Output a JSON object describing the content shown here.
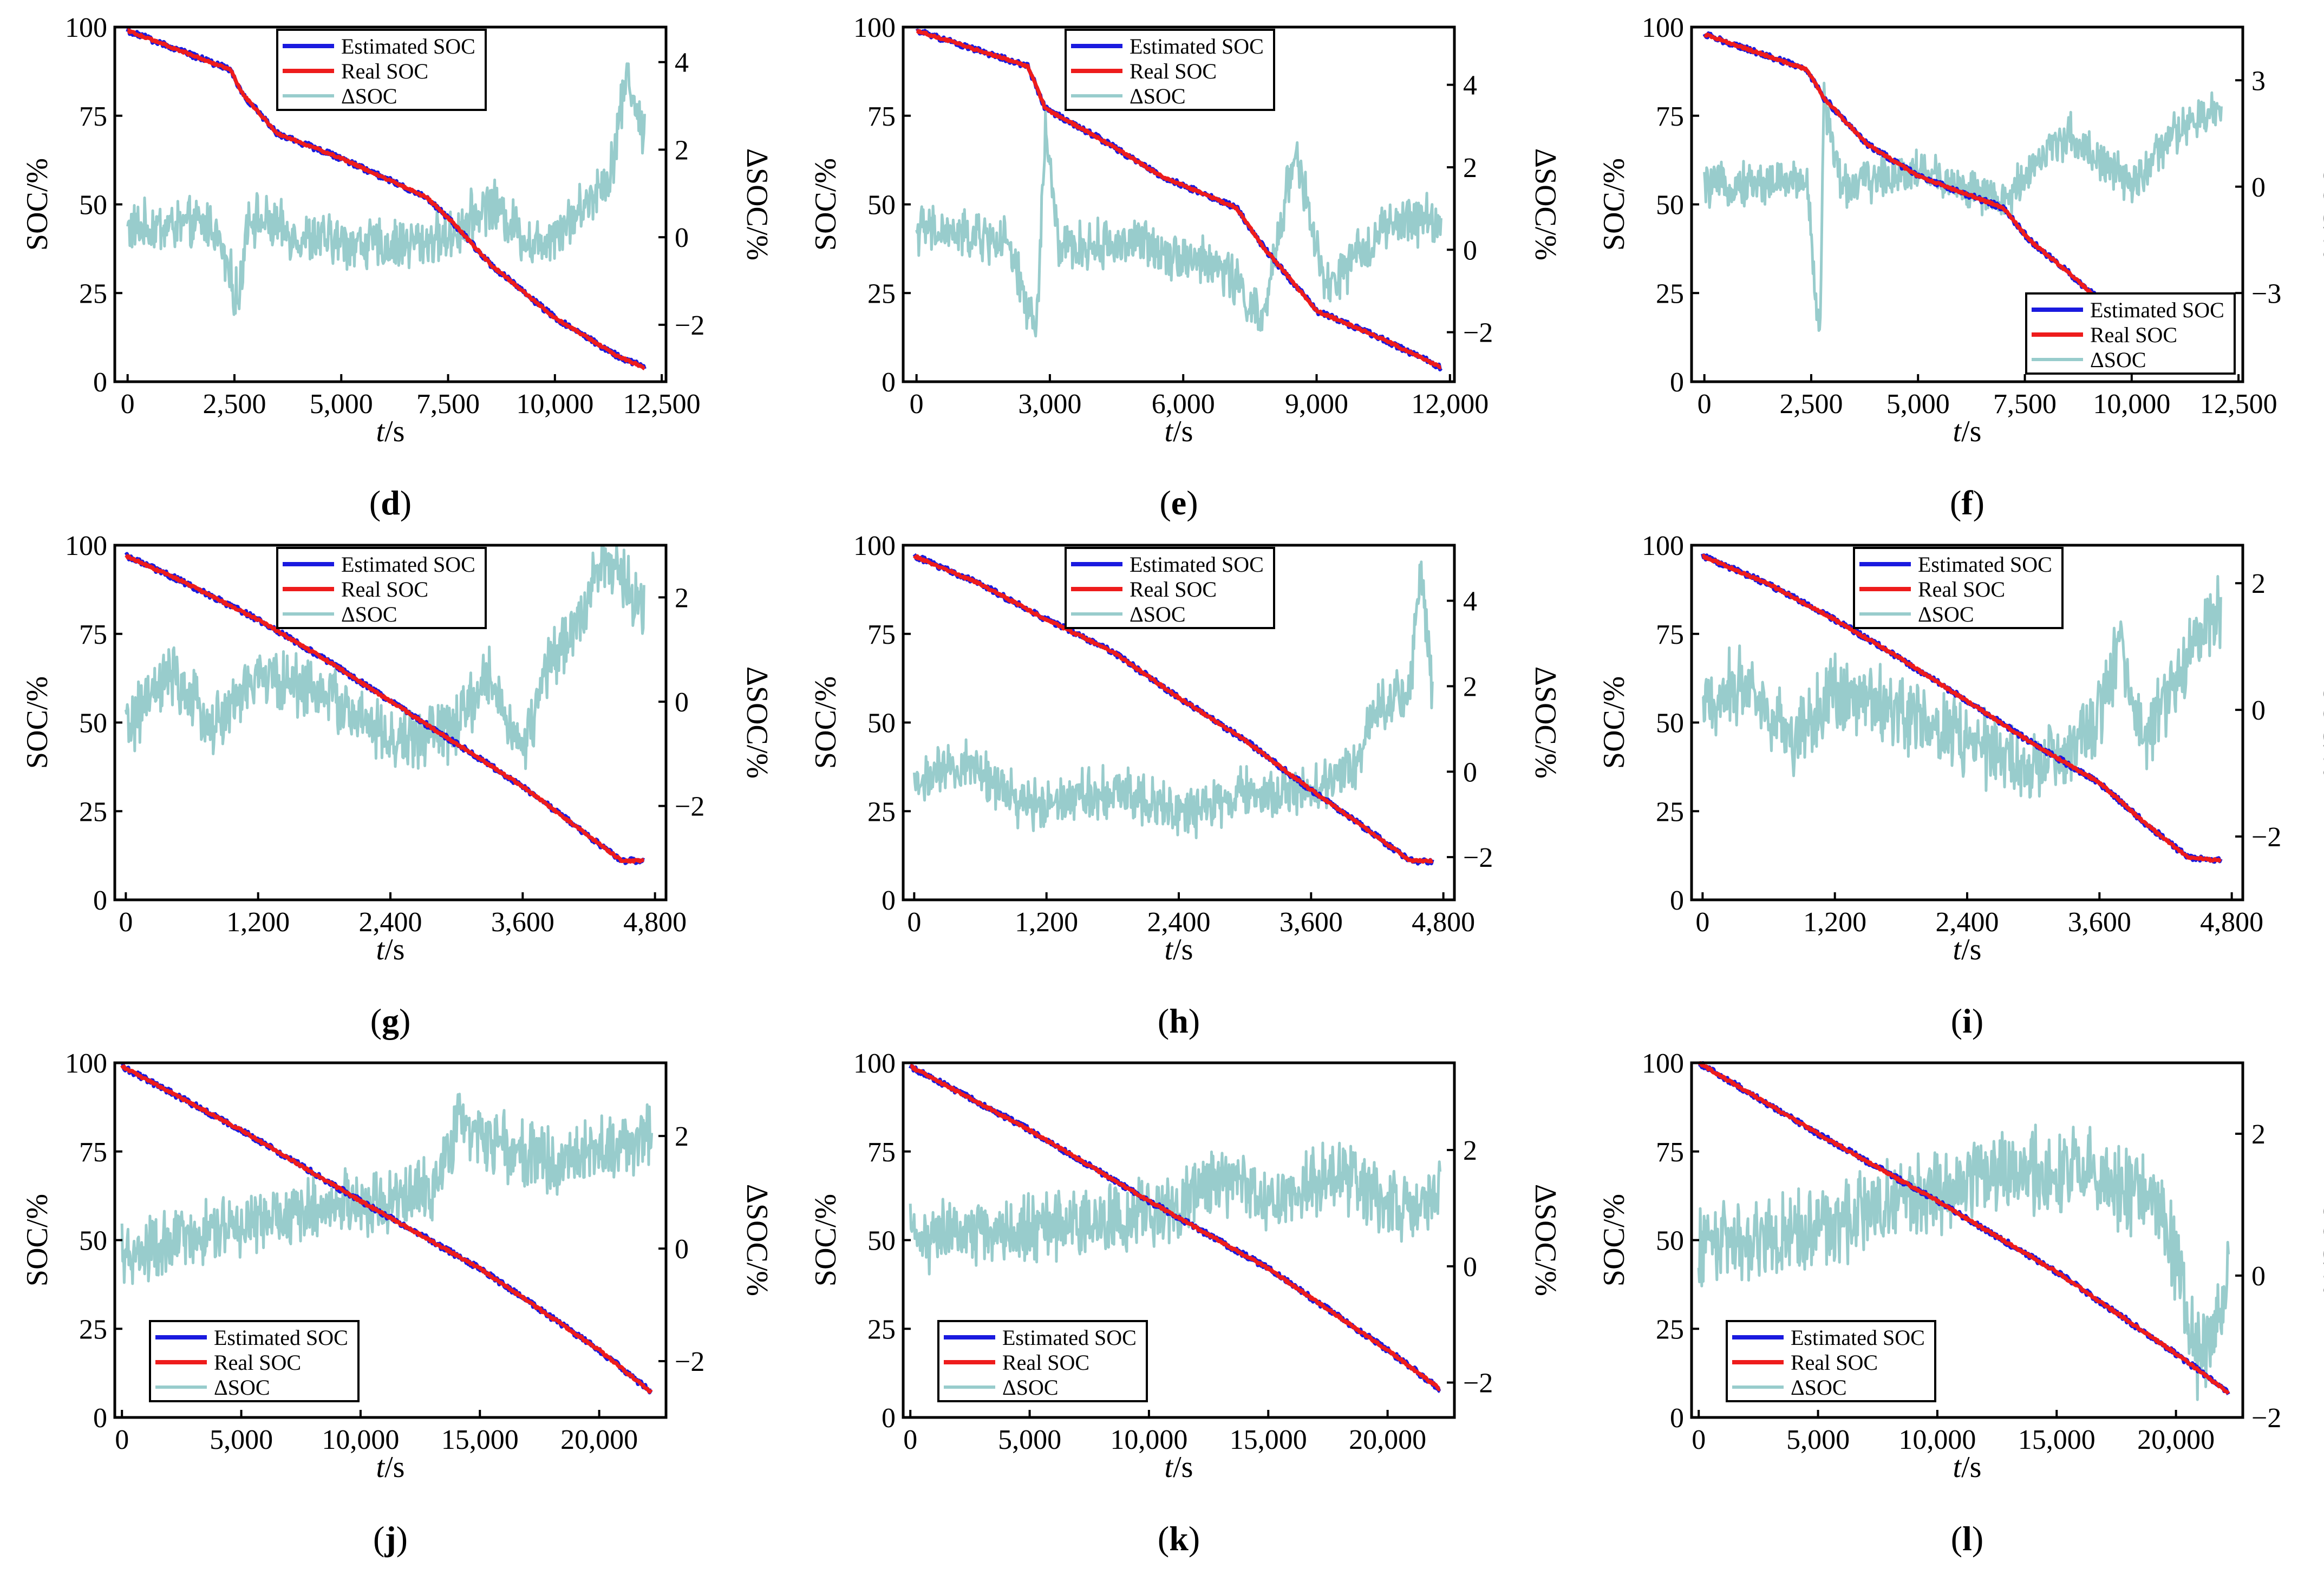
{
  "colors": {
    "estimated": "#1a1adf",
    "real": "#ee1c1c",
    "delta": "#98cccc",
    "axis": "#000000"
  },
  "chart_data": [
    {
      "panel": "d",
      "type": "line",
      "xticks": [
        0,
        2500,
        5000,
        7500,
        10000,
        12500
      ],
      "xlim": [
        -300,
        12600
      ],
      "ylim": [
        0,
        100
      ],
      "yticks": [
        0,
        25,
        50,
        75,
        100
      ],
      "y2lim": [
        -3.3,
        4.8
      ],
      "y2ticks": [
        -2,
        0,
        2,
        4
      ],
      "xlabel": "t/s",
      "ylabel": "SOC/%",
      "y2label": "ΔSOC/%",
      "legend": "top-center",
      "real_soc": [
        [
          0,
          99
        ],
        [
          2400,
          88
        ],
        [
          2700,
          81
        ],
        [
          3500,
          70
        ],
        [
          5000,
          63
        ],
        [
          7000,
          52
        ],
        [
          7600,
          45
        ],
        [
          8500,
          33
        ],
        [
          10000,
          18
        ],
        [
          11500,
          7
        ],
        [
          12100,
          4
        ]
      ],
      "delta_soc": [
        [
          0,
          0.2
        ],
        [
          2000,
          0.3
        ],
        [
          2600,
          -1.5
        ],
        [
          2800,
          0.5
        ],
        [
          4000,
          0
        ],
        [
          6000,
          -0.2
        ],
        [
          7500,
          0
        ],
        [
          8500,
          0.8
        ],
        [
          9500,
          -0.2
        ],
        [
          10500,
          0.5
        ],
        [
          11300,
          1.5
        ],
        [
          11700,
          3.8
        ],
        [
          12000,
          2.5
        ]
      ],
      "series": [
        {
          "name": "Estimated SOC"
        },
        {
          "name": "Real SOC"
        },
        {
          "name": "ΔSOC"
        }
      ]
    },
    {
      "panel": "e",
      "type": "line",
      "xticks": [
        0,
        3000,
        6000,
        9000,
        12000
      ],
      "xlim": [
        -300,
        12100
      ],
      "ylim": [
        0,
        100
      ],
      "yticks": [
        0,
        25,
        50,
        75,
        100
      ],
      "y2lim": [
        -3.2,
        5.4
      ],
      "y2ticks": [
        -2,
        0,
        2,
        4
      ],
      "xlabel": "t/s",
      "ylabel": "SOC/%",
      "y2label": "ΔSOC/%",
      "legend": "top-center",
      "real_soc": [
        [
          0,
          99
        ],
        [
          2500,
          89
        ],
        [
          2900,
          77
        ],
        [
          4200,
          68
        ],
        [
          5500,
          58
        ],
        [
          7200,
          49
        ],
        [
          7800,
          38
        ],
        [
          9000,
          20
        ],
        [
          10500,
          12
        ],
        [
          11800,
          4
        ]
      ],
      "delta_soc": [
        [
          0,
          0.5
        ],
        [
          2000,
          0.2
        ],
        [
          2700,
          -2.0
        ],
        [
          2900,
          3.0
        ],
        [
          3200,
          0
        ],
        [
          5000,
          0.2
        ],
        [
          7000,
          -0.5
        ],
        [
          7800,
          -1.8
        ],
        [
          8500,
          2.5
        ],
        [
          9200,
          -1.0
        ],
        [
          10500,
          0.5
        ],
        [
          11500,
          0.8
        ],
        [
          11900,
          0.5
        ]
      ],
      "series": [
        {
          "name": "Estimated SOC"
        },
        {
          "name": "Real SOC"
        },
        {
          "name": "ΔSOC"
        }
      ]
    },
    {
      "panel": "f",
      "type": "line",
      "xticks": [
        0,
        2500,
        5000,
        7500,
        10000,
        12500
      ],
      "xlim": [
        -300,
        12600
      ],
      "ylim": [
        0,
        100
      ],
      "yticks": [
        0,
        25,
        50,
        75,
        100
      ],
      "y2lim": [
        -5.5,
        4.5
      ],
      "y2ticks": [
        -3,
        0,
        3
      ],
      "xlabel": "t/s",
      "ylabel": "SOC/%",
      "y2label": "ΔSOC/%",
      "legend": "bottom-right",
      "real_soc": [
        [
          0,
          98
        ],
        [
          2400,
          88
        ],
        [
          2800,
          80
        ],
        [
          3800,
          67
        ],
        [
          5000,
          58
        ],
        [
          7000,
          49
        ],
        [
          7600,
          40
        ],
        [
          8500,
          31
        ],
        [
          10000,
          15
        ],
        [
          11500,
          6
        ],
        [
          12100,
          4
        ]
      ],
      "delta_soc": [
        [
          0,
          0
        ],
        [
          2400,
          0.2
        ],
        [
          2700,
          -4.5
        ],
        [
          2800,
          2.5
        ],
        [
          3200,
          0
        ],
        [
          5000,
          0.5
        ],
        [
          7000,
          -0.5
        ],
        [
          7600,
          0.5
        ],
        [
          8500,
          1.5
        ],
        [
          9200,
          0.8
        ],
        [
          10000,
          0
        ],
        [
          11000,
          1.5
        ],
        [
          12100,
          2.2
        ]
      ],
      "series": [
        {
          "name": "Estimated SOC"
        },
        {
          "name": "Real SOC"
        },
        {
          "name": "ΔSOC"
        }
      ]
    },
    {
      "panel": "g",
      "type": "line",
      "xticks": [
        0,
        1200,
        2400,
        3600,
        4800
      ],
      "xlim": [
        -100,
        4900
      ],
      "ylim": [
        0,
        100
      ],
      "yticks": [
        0,
        25,
        50,
        75,
        100
      ],
      "y2lim": [
        -3.8,
        3.0
      ],
      "y2ticks": [
        -2,
        0,
        2
      ],
      "xlabel": "t/s",
      "ylabel": "SOC/%",
      "y2label": "ΔSOC/%",
      "legend": "top-center",
      "real_soc": [
        [
          0,
          97
        ],
        [
          500,
          90
        ],
        [
          1200,
          79
        ],
        [
          1800,
          68
        ],
        [
          2400,
          56
        ],
        [
          3000,
          44
        ],
        [
          3600,
          32
        ],
        [
          4200,
          18
        ],
        [
          4500,
          11
        ],
        [
          4700,
          11
        ]
      ],
      "delta_soc": [
        [
          0,
          -0.5
        ],
        [
          400,
          0.5
        ],
        [
          800,
          -0.5
        ],
        [
          1200,
          0.5
        ],
        [
          1800,
          0.2
        ],
        [
          2400,
          -0.8
        ],
        [
          3000,
          -0.5
        ],
        [
          3300,
          0.5
        ],
        [
          3600,
          -1.0
        ],
        [
          3800,
          0.5
        ],
        [
          4100,
          1.5
        ],
        [
          4300,
          2.8
        ],
        [
          4700,
          1.8
        ]
      ],
      "series": [
        {
          "name": "Estimated SOC"
        },
        {
          "name": "Real SOC"
        },
        {
          "name": "ΔSOC"
        }
      ]
    },
    {
      "panel": "h",
      "type": "line",
      "xticks": [
        0,
        1200,
        2400,
        3600,
        4800
      ],
      "xlim": [
        -100,
        4900
      ],
      "ylim": [
        0,
        100
      ],
      "yticks": [
        0,
        25,
        50,
        75,
        100
      ],
      "y2lim": [
        -3.0,
        5.3
      ],
      "y2ticks": [
        -2,
        0,
        2,
        4
      ],
      "xlabel": "t/s",
      "ylabel": "SOC/%",
      "y2label": "ΔSOC/%",
      "legend": "top-center",
      "real_soc": [
        [
          0,
          97
        ],
        [
          600,
          89
        ],
        [
          1200,
          79
        ],
        [
          1800,
          70
        ],
        [
          2400,
          57
        ],
        [
          3000,
          45
        ],
        [
          3600,
          31
        ],
        [
          4100,
          20
        ],
        [
          4500,
          11
        ],
        [
          4700,
          11
        ]
      ],
      "delta_soc": [
        [
          0,
          -0.3
        ],
        [
          500,
          0.2
        ],
        [
          1000,
          -0.8
        ],
        [
          1500,
          -0.5
        ],
        [
          2000,
          -0.5
        ],
        [
          2500,
          -1.0
        ],
        [
          3000,
          -0.5
        ],
        [
          3600,
          -0.5
        ],
        [
          4000,
          0.2
        ],
        [
          4200,
          1.5
        ],
        [
          4500,
          2.0
        ],
        [
          4600,
          4.8
        ],
        [
          4700,
          1.8
        ]
      ],
      "series": [
        {
          "name": "Estimated SOC"
        },
        {
          "name": "Real SOC"
        },
        {
          "name": "ΔSOC"
        }
      ]
    },
    {
      "panel": "i",
      "type": "line",
      "xticks": [
        0,
        1200,
        2400,
        3600,
        4800
      ],
      "xlim": [
        -100,
        4900
      ],
      "ylim": [
        0,
        100
      ],
      "yticks": [
        0,
        25,
        50,
        75,
        100
      ],
      "y2lim": [
        -3.0,
        2.6
      ],
      "y2ticks": [
        -2,
        0,
        2
      ],
      "xlabel": "t/s",
      "ylabel": "SOC/%",
      "y2label": "ΔSOC/%",
      "legend": "top-center",
      "real_soc": [
        [
          0,
          97
        ],
        [
          600,
          89
        ],
        [
          1200,
          79
        ],
        [
          1800,
          68
        ],
        [
          2400,
          56
        ],
        [
          3000,
          44
        ],
        [
          3600,
          33
        ],
        [
          4000,
          22
        ],
        [
          4400,
          12
        ],
        [
          4700,
          11
        ]
      ],
      "delta_soc": [
        [
          0,
          0
        ],
        [
          400,
          0.5
        ],
        [
          800,
          -0.5
        ],
        [
          1200,
          0.3
        ],
        [
          1800,
          0
        ],
        [
          2400,
          -0.5
        ],
        [
          3000,
          -1.0
        ],
        [
          3500,
          -0.5
        ],
        [
          3800,
          1.0
        ],
        [
          4000,
          -0.5
        ],
        [
          4300,
          0.5
        ],
        [
          4500,
          1.2
        ],
        [
          4700,
          1.6
        ]
      ],
      "series": [
        {
          "name": "Estimated SOC"
        },
        {
          "name": "Real SOC"
        },
        {
          "name": "ΔSOC"
        }
      ]
    },
    {
      "panel": "j",
      "type": "line",
      "xticks": [
        0,
        5000,
        10000,
        15000,
        20000
      ],
      "xlim": [
        -300,
        22800
      ],
      "ylim": [
        0,
        100
      ],
      "yticks": [
        0,
        25,
        50,
        75,
        100
      ],
      "y2lim": [
        -3.0,
        3.3
      ],
      "y2ticks": [
        -2,
        0,
        2
      ],
      "xlabel": "t/s",
      "ylabel": "SOC/%",
      "y2label": "ΔSOC/%",
      "legend": "bottom-left",
      "real_soc": [
        [
          0,
          99
        ],
        [
          5000,
          81
        ],
        [
          10000,
          61
        ],
        [
          15000,
          42
        ],
        [
          20000,
          19
        ],
        [
          22200,
          7
        ]
      ],
      "delta_soc": [
        [
          0,
          -0.2
        ],
        [
          3000,
          0.2
        ],
        [
          7000,
          0.6
        ],
        [
          10000,
          0.8
        ],
        [
          13000,
          1.0
        ],
        [
          14000,
          2.2
        ],
        [
          16000,
          1.8
        ],
        [
          18000,
          1.5
        ],
        [
          20000,
          1.8
        ],
        [
          22200,
          2.0
        ]
      ],
      "series": [
        {
          "name": "Estimated SOC"
        },
        {
          "name": "Real SOC"
        },
        {
          "name": "ΔSOC"
        }
      ]
    },
    {
      "panel": "k",
      "type": "line",
      "xticks": [
        0,
        5000,
        10000,
        15000,
        20000
      ],
      "xlim": [
        -300,
        22800
      ],
      "ylim": [
        0,
        100
      ],
      "yticks": [
        0,
        25,
        50,
        75,
        100
      ],
      "y2lim": [
        -2.6,
        3.5
      ],
      "y2ticks": [
        -2,
        0,
        2
      ],
      "xlabel": "t/s",
      "ylabel": "SOC/%",
      "y2label": "ΔSOC/%",
      "legend": "bottom-left",
      "real_soc": [
        [
          0,
          99
        ],
        [
          5000,
          81
        ],
        [
          10000,
          61
        ],
        [
          15000,
          42
        ],
        [
          20000,
          19
        ],
        [
          22200,
          8
        ]
      ],
      "delta_soc": [
        [
          0,
          0.5
        ],
        [
          4000,
          0.6
        ],
        [
          8000,
          0.8
        ],
        [
          11000,
          1.0
        ],
        [
          13000,
          1.5
        ],
        [
          15000,
          1.2
        ],
        [
          18000,
          1.6
        ],
        [
          20000,
          1.0
        ],
        [
          22200,
          1.2
        ]
      ],
      "series": [
        {
          "name": "Estimated SOC"
        },
        {
          "name": "Real SOC"
        },
        {
          "name": "ΔSOC"
        }
      ]
    },
    {
      "panel": "l",
      "type": "line",
      "xticks": [
        0,
        5000,
        10000,
        15000,
        20000
      ],
      "xlim": [
        -300,
        22800
      ],
      "ylim": [
        0,
        100
      ],
      "yticks": [
        0,
        25,
        50,
        75,
        100
      ],
      "y2lim": [
        -2.0,
        3.0
      ],
      "y2ticks": [
        -2,
        0,
        2
      ],
      "xlabel": "t/s",
      "ylabel": "SOC/%",
      "y2label": "ΔSOC/%",
      "legend": "bottom-left",
      "real_soc": [
        [
          0,
          100
        ],
        [
          5000,
          80
        ],
        [
          10000,
          61
        ],
        [
          15000,
          41
        ],
        [
          20000,
          18
        ],
        [
          22200,
          7
        ]
      ],
      "delta_soc": [
        [
          0,
          0.5
        ],
        [
          4000,
          0.6
        ],
        [
          8000,
          1.0
        ],
        [
          10000,
          1.2
        ],
        [
          13000,
          1.5
        ],
        [
          16000,
          1.5
        ],
        [
          17500,
          1.2
        ],
        [
          19000,
          1.2
        ],
        [
          20000,
          0.2
        ],
        [
          21000,
          -1.3
        ],
        [
          22200,
          0
        ]
      ],
      "series": [
        {
          "name": "Estimated SOC"
        },
        {
          "name": "Real SOC"
        },
        {
          "name": "ΔSOC"
        }
      ]
    }
  ]
}
